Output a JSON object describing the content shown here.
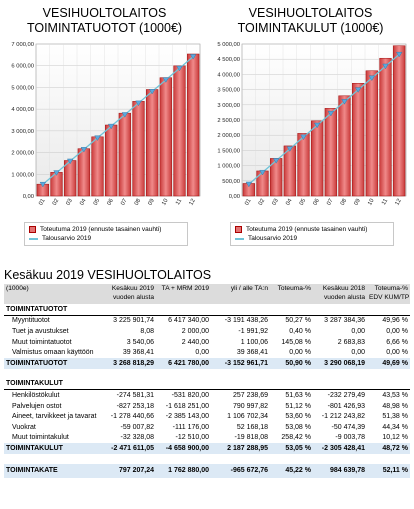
{
  "charts": [
    {
      "title_line1": "VESIHUOLTOLAITOS",
      "title_line2": "TOIMINTATUOTOT (1000€)"
    },
    {
      "title_line1": "VESIHUOLTOLAITOS",
      "title_line2": "TOIMINTAKULUT (1000€)"
    }
  ],
  "legend": {
    "actual": "Toteutuma 2019 (ennuste tasainen vauhti)",
    "budget": "Talousarvio 2019"
  },
  "colors": {
    "bar_fill": "#e27373",
    "bar_stroke": "#a30f0f",
    "budget_line": "#6fc3d8",
    "total_row": "#dce9f5",
    "header_row": "#dcdcdc"
  },
  "chart_data": [
    {
      "type": "bar",
      "categories": [
        "01",
        "02",
        "03",
        "04",
        "05",
        "06",
        "07",
        "08",
        "09",
        "10",
        "11",
        "12"
      ],
      "series": [
        {
          "name": "Toteutuma 2019 (ennuste tasainen vauhti)",
          "type": "bar",
          "values": [
            545,
            1090,
            1635,
            2180,
            2725,
            3270,
            3815,
            4360,
            4905,
            5450,
            5995,
            6540
          ]
        },
        {
          "name": "Talousarvio 2019",
          "type": "line",
          "values": [
            535,
            1070,
            1605,
            2140,
            2675,
            3210,
            3745,
            4280,
            4815,
            5350,
            5885,
            6420
          ]
        }
      ],
      "yticks": [
        "0,00",
        "1 000,00",
        "2 000,00",
        "3 000,00",
        "4 000,00",
        "5 000,00",
        "6 000,00",
        "7 000,00"
      ],
      "ylim": [
        0,
        7000
      ]
    },
    {
      "type": "bar",
      "categories": [
        "01",
        "02",
        "03",
        "04",
        "05",
        "06",
        "07",
        "08",
        "09",
        "10",
        "11",
        "12"
      ],
      "series": [
        {
          "name": "Toteutuma 2019 (ennuste tasainen vauhti)",
          "type": "bar",
          "values": [
            412,
            824,
            1236,
            1648,
            2060,
            2472,
            2884,
            3296,
            3708,
            4120,
            4532,
            4943
          ]
        },
        {
          "name": "Talousarvio 2019",
          "type": "line",
          "values": [
            388,
            776,
            1164,
            1552,
            1940,
            2329,
            2717,
            3105,
            3494,
            3882,
            4270,
            4659
          ]
        }
      ],
      "yticks": [
        "0,00",
        "500,00",
        "1 000,00",
        "1 500,00",
        "2 000,00",
        "2 500,00",
        "3 000,00",
        "3 500,00",
        "4 000,00",
        "4 500,00",
        "5 000,00"
      ],
      "ylim": [
        0,
        5000
      ]
    }
  ],
  "report": {
    "title": "Kesäkuu 2019 VESIHUOLTOLAITOS",
    "header": {
      "c1": "(1000e)",
      "c2a": "Kesäkuu 2019",
      "c2b": "vuoden alusta",
      "c3": "TA + MRM 2019",
      "c4": "yli / alle TA:n",
      "c5": "Toteuma-%",
      "c6a": "Kesäkuu 2018",
      "c6b": "vuoden alusta",
      "c7a": "Toteuma-%",
      "c7b": "EDV KUM/TP"
    },
    "rows": [
      {
        "kind": "section",
        "c1": "TOIMINTATUOTOT",
        "c2": "",
        "c3": "",
        "c4": "",
        "c5": "",
        "c6": "",
        "c7": ""
      },
      {
        "kind": "item",
        "c1": "Myyntituotot",
        "c2": "3 225 901,74",
        "c3": "6 417 340,00",
        "c4": "-3 191 438,26",
        "c5": "50,27 %",
        "c6": "3 287 384,36",
        "c7": "49,96 %"
      },
      {
        "kind": "item",
        "c1": "Tuet ja avustukset",
        "c2": "8,08",
        "c3": "2 000,00",
        "c4": "-1 991,92",
        "c5": "0,40 %",
        "c6": "0,00",
        "c7": "0,00 %"
      },
      {
        "kind": "item",
        "c1": "Muut toimintatuotot",
        "c2": "3 540,06",
        "c3": "2 440,00",
        "c4": "1 100,06",
        "c5": "145,08 %",
        "c6": "2 683,83",
        "c7": "6,66 %"
      },
      {
        "kind": "item",
        "c1": "Valmistus omaan käyttöön",
        "c2": "39 368,41",
        "c3": "0,00",
        "c4": "39 368,41",
        "c5": "0,00 %",
        "c6": "0,00",
        "c7": "0,00 %"
      },
      {
        "kind": "total",
        "c1": "TOIMINTATUOTOT",
        "c2": "3 268 818,29",
        "c3": "6 421 780,00",
        "c4": "-3 152 961,71",
        "c5": "50,90 %",
        "c6": "3 290 068,19",
        "c7": "49,69 %"
      },
      {
        "kind": "blank",
        "c1": "",
        "c2": "",
        "c3": "",
        "c4": "",
        "c5": "",
        "c6": "",
        "c7": ""
      },
      {
        "kind": "section",
        "c1": "TOIMINTAKULUT",
        "c2": "",
        "c3": "",
        "c4": "",
        "c5": "",
        "c6": "",
        "c7": ""
      },
      {
        "kind": "item",
        "c1": "Henkilöstökulut",
        "c2": "-274 581,31",
        "c3": "-531 820,00",
        "c4": "257 238,69",
        "c5": "51,63 %",
        "c6": "-232 279,49",
        "c7": "43,53 %"
      },
      {
        "kind": "item",
        "c1": "Palvelujen ostot",
        "c2": "-827 253,18",
        "c3": "-1 618 251,00",
        "c4": "790 997,82",
        "c5": "51,12 %",
        "c6": "-801 426,93",
        "c7": "48,98 %"
      },
      {
        "kind": "item",
        "c1": "Aineet, tarvikkeet ja tavarat",
        "c2": "-1 278 440,66",
        "c3": "-2 385 143,00",
        "c4": "1 106 702,34",
        "c5": "53,60 %",
        "c6": "-1 212 243,82",
        "c7": "51,38 %"
      },
      {
        "kind": "item",
        "c1": "Vuokrat",
        "c2": "-59 007,82",
        "c3": "-111 176,00",
        "c4": "52 168,18",
        "c5": "53,08 %",
        "c6": "-50 474,39",
        "c7": "44,34 %"
      },
      {
        "kind": "item",
        "c1": "Muut toimintakulut",
        "c2": "-32 328,08",
        "c3": "-12 510,00",
        "c4": "-19 818,08",
        "c5": "258,42 %",
        "c6": "-9 003,78",
        "c7": "10,12 %"
      },
      {
        "kind": "total",
        "c1": "TOIMINTAKULUT",
        "c2": "-2 471 611,05",
        "c3": "-4 658 900,00",
        "c4": "2 187 288,95",
        "c5": "53,05 %",
        "c6": "-2 305 428,41",
        "c7": "48,72 %"
      },
      {
        "kind": "blank",
        "c1": "",
        "c2": "",
        "c3": "",
        "c4": "",
        "c5": "",
        "c6": "",
        "c7": ""
      },
      {
        "kind": "grand",
        "c1": "TOIMINTAKATE",
        "c2": "797 207,24",
        "c3": "1 762 880,00",
        "c4": "-965 672,76",
        "c5": "45,22 %",
        "c6": "984 639,78",
        "c7": "52,11 %"
      }
    ]
  }
}
